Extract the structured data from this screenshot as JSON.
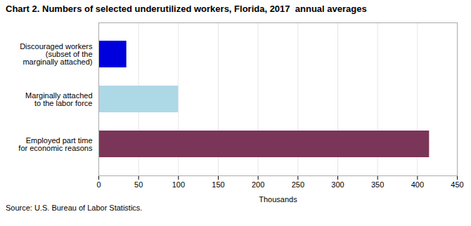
{
  "chart_data": {
    "type": "bar",
    "title": "Chart 2. Numbers of selected underutilized workers, Florida, 2017  annual averages",
    "categories": [
      "Discouraged workers\n(subset of the\nmarginally attached)",
      "Marginally attached\nto the labor force",
      "Employed part time\nfor economic reasons"
    ],
    "values": [
      35,
      100,
      415
    ],
    "colors": [
      "#0000dd",
      "#add8e6",
      "#7b3558"
    ],
    "orientation": "horizontal",
    "xlabel": "Thousands",
    "xlim": [
      0,
      450
    ],
    "xticks": [
      0,
      50,
      100,
      150,
      200,
      250,
      300,
      350,
      400,
      450
    ],
    "grid": true,
    "source": "Source: U.S. Bureau of Labor Statistics."
  }
}
